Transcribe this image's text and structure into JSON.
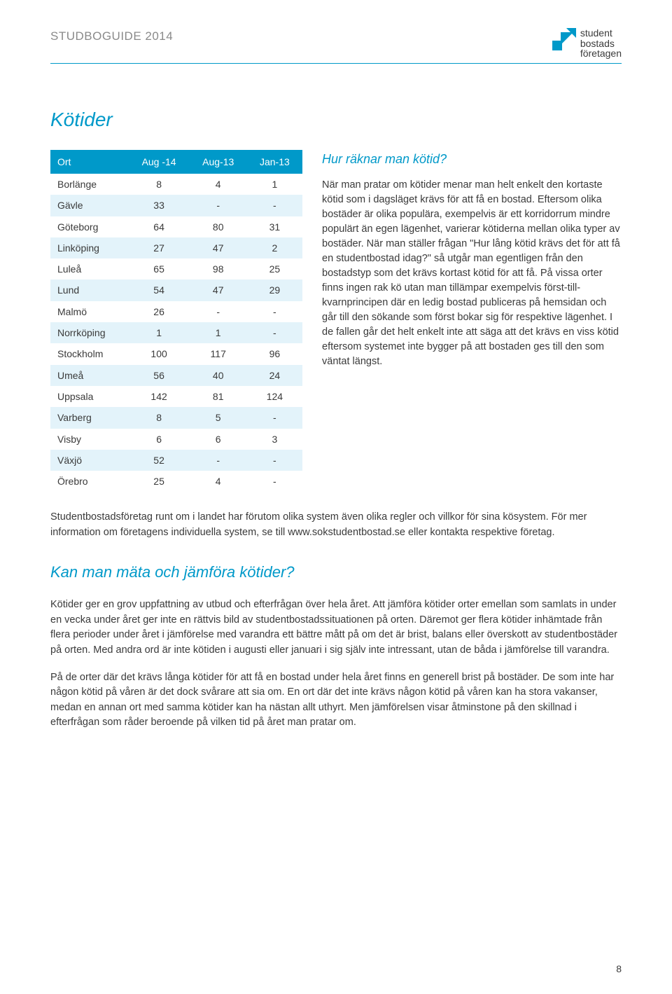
{
  "header": {
    "title": "STUDBOGUIDE 2014",
    "logo_line1": "student",
    "logo_line2": "bostads",
    "logo_line3": "företagen"
  },
  "section1": {
    "title": "Kötider",
    "table": {
      "columns": [
        "Ort",
        "Aug -14",
        "Aug-13",
        "Jan-13"
      ],
      "rows": [
        [
          "Borlänge",
          "8",
          "4",
          "1"
        ],
        [
          "Gävle",
          "33",
          "-",
          "-"
        ],
        [
          "Göteborg",
          "64",
          "80",
          "31"
        ],
        [
          "Linköping",
          "27",
          "47",
          "2"
        ],
        [
          "Luleå",
          "65",
          "98",
          "25"
        ],
        [
          "Lund",
          "54",
          "47",
          "29"
        ],
        [
          "Malmö",
          "26",
          "-",
          "-"
        ],
        [
          "Norrköping",
          "1",
          "1",
          "-"
        ],
        [
          "Stockholm",
          "100",
          "117",
          "96"
        ],
        [
          "Umeå",
          "56",
          "40",
          "24"
        ],
        [
          "Uppsala",
          "142",
          "81",
          "124"
        ],
        [
          "Varberg",
          "8",
          "5",
          "-"
        ],
        [
          "Visby",
          "6",
          "6",
          "3"
        ],
        [
          "Växjö",
          "52",
          "-",
          "-"
        ],
        [
          "Örebro",
          "25",
          "4",
          "-"
        ]
      ],
      "header_bg": "#0099c9",
      "header_color": "#ffffff",
      "row_alt_bg": "#e3f3fa"
    },
    "right": {
      "heading": "Hur räknar man kötid?",
      "para": "När man pratar om kötider menar man helt enkelt den kortaste kötid som i dagsläget krävs för att få en bostad. Eftersom olika bostäder är olika populära, exempelvis är ett korridorrum mindre populärt än egen lägenhet, varierar kötiderna mellan olika typer av bostäder. När man ställer frågan \"Hur lång kötid krävs det för att få en studentbostad idag?\" så utgår man egentligen från den bostadstyp som det krävs kortast kötid för att få. På vissa orter finns ingen rak kö utan man tillämpar exempelvis först-till-kvarnprincipen där en ledig bostad publiceras på hemsidan och går till den sökande som först bokar sig för respektive lägenhet. I de fallen går det helt enkelt inte att säga att det krävs en viss kötid eftersom systemet inte bygger på att bostaden ges till den som väntat längst."
    },
    "below_para": "Studentbostadsföretag runt om i landet har förutom olika system även olika regler och villkor för sina kösystem. För mer information om företagens individuella system, se till www.sokstudentbostad.se eller kontakta respektive företag."
  },
  "section2": {
    "title": "Kan man mäta och jämföra kötider?",
    "para1": "Kötider ger en grov uppfattning av utbud och efterfrågan över hela året. Att jämföra kötider orter emellan som samlats in under en vecka under året ger inte en rättvis bild av studentbostadssituationen på orten. Däremot ger flera kötider inhämtade från flera perioder under året i jämförelse med varandra ett bättre mått på om det är brist, balans eller överskott av studentbostäder på orten. Med andra ord är inte kötiden i augusti eller januari i sig själv inte intressant, utan de båda i jämförelse till varandra.",
    "para2": "På de orter där det krävs långa kötider för att få en bostad under hela året finns en generell brist på bostäder. De som inte har någon kötid på våren är det dock svårare att sia om. En ort där det inte krävs någon kötid på våren kan ha stora vakanser, medan en annan ort med samma kötider kan ha nästan allt uthyrt. Men jämförelsen visar åtminstone på den skillnad i efterfrågan som råder beroende på vilken tid på året man pratar om."
  },
  "page_number": "8",
  "colors": {
    "accent": "#0099c9",
    "text": "#3a3a3a",
    "header_gray": "#8a8a8a"
  }
}
